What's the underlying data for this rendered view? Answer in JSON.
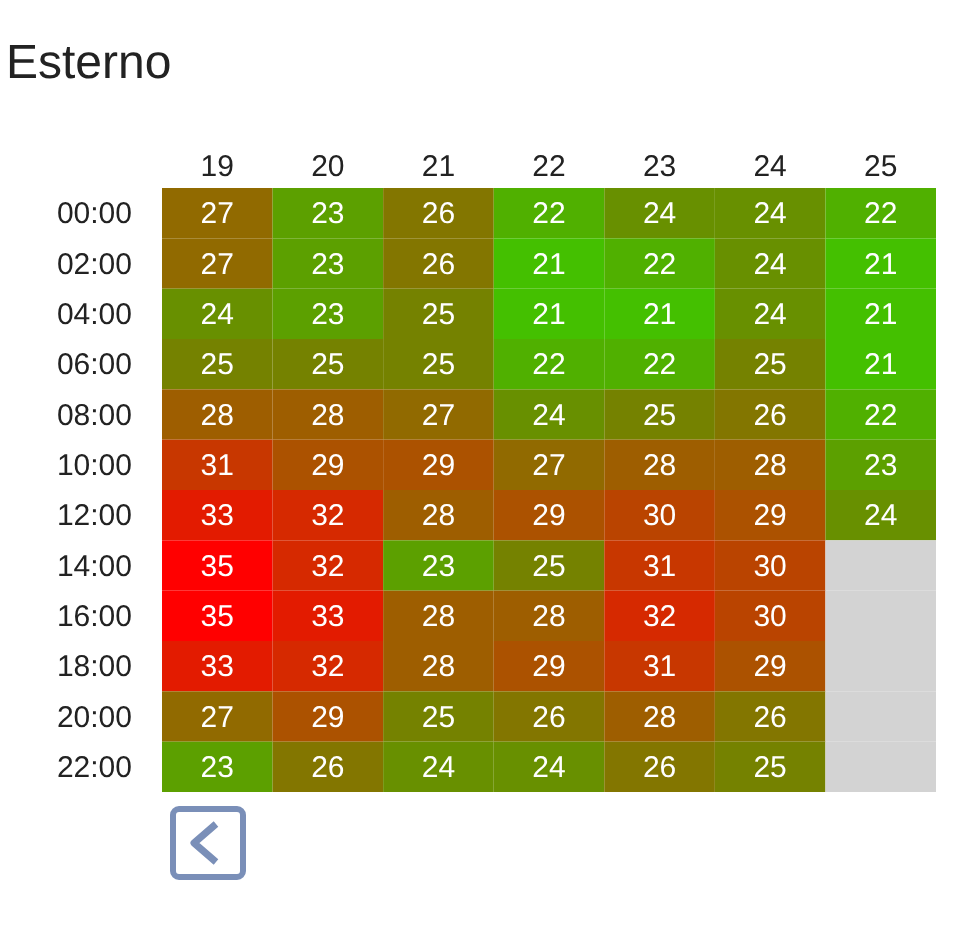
{
  "chart_data": {
    "type": "heatmap",
    "title": "Esterno",
    "categories": [
      "19",
      "20",
      "21",
      "22",
      "23",
      "24",
      "25"
    ],
    "y_categories": [
      "00:00",
      "02:00",
      "04:00",
      "06:00",
      "08:00",
      "10:00",
      "12:00",
      "14:00",
      "16:00",
      "18:00",
      "20:00",
      "22:00"
    ],
    "cells": [
      [
        27,
        23,
        26,
        22,
        24,
        24,
        22
      ],
      [
        27,
        23,
        26,
        21,
        22,
        24,
        21
      ],
      [
        24,
        23,
        25,
        21,
        21,
        24,
        21
      ],
      [
        25,
        25,
        25,
        22,
        22,
        25,
        21
      ],
      [
        28,
        28,
        27,
        24,
        25,
        26,
        22
      ],
      [
        31,
        29,
        29,
        27,
        28,
        28,
        23
      ],
      [
        33,
        32,
        28,
        29,
        30,
        29,
        24
      ],
      [
        35,
        32,
        23,
        25,
        31,
        30,
        null
      ],
      [
        35,
        33,
        28,
        28,
        32,
        30,
        null
      ],
      [
        33,
        32,
        28,
        29,
        31,
        29,
        null
      ],
      [
        27,
        29,
        25,
        26,
        28,
        26,
        null
      ],
      [
        23,
        26,
        24,
        24,
        26,
        25,
        null
      ]
    ],
    "data_labels": true
  }
}
